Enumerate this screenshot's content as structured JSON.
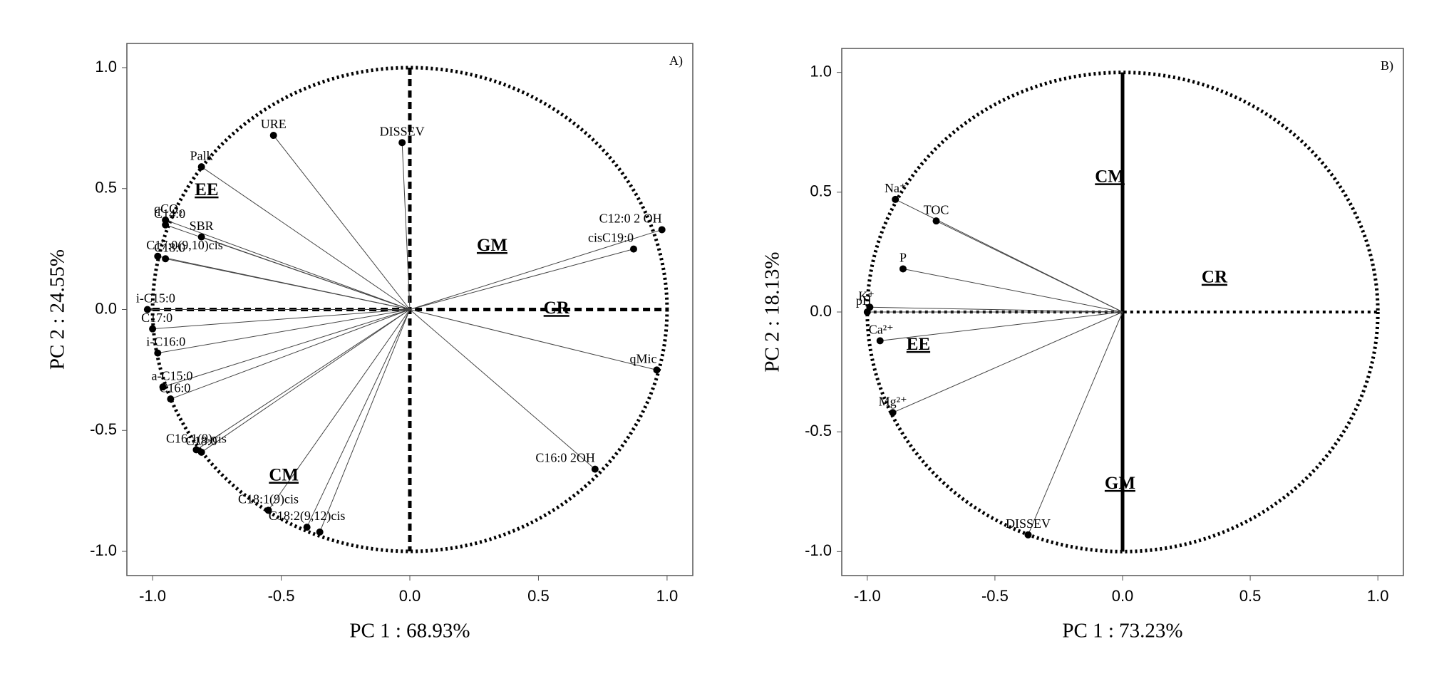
{
  "chart_data": [
    {
      "type": "scatter",
      "title": "A)",
      "xlabel": "PC 1 : 68.93%",
      "ylabel": "PC 2 : 24.55%",
      "xlim": [
        -1.1,
        1.1
      ],
      "ylim": [
        -1.1,
        1.1
      ],
      "xticks": [
        {
          "value": -1,
          "label": "-1.0"
        },
        -0.5,
        {
          "value": 0,
          "label": "0.0"
        },
        0.5,
        {
          "value": 1,
          "label": "1.0"
        }
      ],
      "yticks": [
        {
          "value": -1,
          "label": "-1.0"
        },
        -0.5,
        {
          "value": 0,
          "label": "0.0"
        },
        0.5,
        {
          "value": 1,
          "label": "1.0"
        }
      ],
      "axis_style": "dashed",
      "series": [
        {
          "color": "#000000",
          "labels": [
            "URE",
            "DISSEV",
            "Palk",
            "qCO₂",
            "C14:0",
            "SBR",
            "C17:0(9,10)cis",
            "C18:0",
            "cisC19:0",
            "C12:0 2 OH",
            "i-C15:0",
            "C17:0",
            "i-C16:0",
            "a-C15:0",
            "C16:0",
            "C16:1(9)cis",
            "C18:0",
            "C18:1(9)cis",
            "C18:2(9,12)cis",
            null,
            "qMic",
            "C16:0 2OH"
          ],
          "x": [
            -0.53,
            -0.03,
            -0.81,
            -0.95,
            -0.95,
            -0.81,
            -0.98,
            -0.95,
            0.87,
            0.98,
            -1.02,
            -1.0,
            -0.98,
            -0.96,
            -0.93,
            -0.83,
            -0.81,
            -0.55,
            -0.4,
            -0.35,
            0.96,
            0.72
          ],
          "values": [
            0.72,
            0.69,
            0.59,
            0.37,
            0.35,
            0.3,
            0.22,
            0.21,
            0.25,
            0.33,
            0.0,
            -0.08,
            -0.18,
            -0.32,
            -0.37,
            -0.58,
            -0.59,
            -0.83,
            -0.9,
            -0.92,
            -0.25,
            -0.66
          ]
        }
      ],
      "annotations": [
        {
          "text": "EE",
          "x": -0.79,
          "y": 0.49
        },
        {
          "text": "GM",
          "x": 0.32,
          "y": 0.26
        },
        {
          "text": "CR",
          "x": 0.57,
          "y": 0.0
        },
        {
          "text": "CM",
          "x": -0.49,
          "y": -0.69
        }
      ]
    },
    {
      "type": "scatter",
      "title": "B)",
      "xlabel": "PC 1 : 73.23%",
      "ylabel": "PC 2 : 18.13%",
      "xlim": [
        -1.1,
        1.1
      ],
      "ylim": [
        -1.1,
        1.1
      ],
      "xticks": [
        {
          "value": -1,
          "label": "-1.0"
        },
        -0.5,
        {
          "value": 0,
          "label": "0.0"
        },
        0.5,
        {
          "value": 1,
          "label": "1.0"
        }
      ],
      "yticks": [
        {
          "value": -1,
          "label": "-1.0"
        },
        -0.5,
        {
          "value": 0,
          "label": "0.0"
        },
        0.5,
        {
          "value": 1,
          "label": "1.0"
        }
      ],
      "axis_style": "solid",
      "series": [
        {
          "color": "#000000",
          "labels": [
            "Na⁺",
            "TOC",
            "P",
            "K⁺",
            "pH",
            "Ca²⁺",
            "Mg²⁺",
            "DISSEV"
          ],
          "x": [
            -0.89,
            -0.73,
            -0.86,
            -0.99,
            -1.0,
            -0.95,
            -0.9,
            -0.37
          ],
          "values": [
            0.47,
            0.38,
            0.18,
            0.02,
            0.0,
            -0.12,
            -0.42,
            -0.93
          ]
        }
      ],
      "annotations": [
        {
          "text": "CM",
          "x": -0.05,
          "y": 0.56
        },
        {
          "text": "CR",
          "x": 0.36,
          "y": 0.14
        },
        {
          "text": "EE",
          "x": -0.8,
          "y": -0.14
        },
        {
          "text": "GM",
          "x": -0.01,
          "y": -0.72
        }
      ]
    }
  ]
}
